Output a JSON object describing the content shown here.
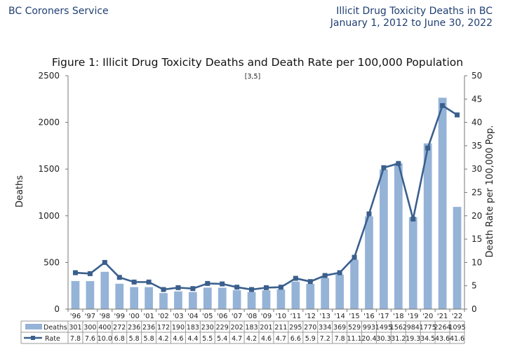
{
  "header": {
    "org": "BC Coroners Service",
    "report_title_line1": "Illicit Drug Toxicity Deaths in BC",
    "report_title_line2": "January 1, 2012 to June 30, 2022"
  },
  "colors": {
    "bars": "#95b3d7",
    "line": "#3a5f8d",
    "header_text": "#1f3f73"
  },
  "chart_data": {
    "type": "bar",
    "title": "Figure 1: Illicit Drug Toxicity Deaths and Death Rate per 100,000 Population",
    "annotation": "[3,5]",
    "ylabel": "Deaths",
    "y2label": "Death Rate per 100,000 Pop.",
    "ylim": [
      0,
      2500
    ],
    "yticks": [
      0,
      500,
      1000,
      1500,
      2000,
      2500
    ],
    "y2lim": [
      0,
      50
    ],
    "y2ticks": [
      0,
      5,
      10,
      15,
      20,
      25,
      30,
      35,
      40,
      45,
      50
    ],
    "categories": [
      "'96",
      "'97",
      "'98",
      "'99",
      "'00",
      "'01",
      "'02",
      "'03",
      "'04",
      "'05",
      "'06",
      "'07",
      "'08",
      "'09",
      "'10",
      "'11",
      "'12",
      "'13",
      "'14",
      "'15",
      "'16",
      "'17",
      "'18",
      "'19",
      "'20",
      "'21",
      "'22"
    ],
    "series": [
      {
        "name": "Deaths",
        "type": "bar",
        "axis": "left",
        "values": [
          301,
          300,
          400,
          272,
          236,
          236,
          172,
          190,
          183,
          230,
          229,
          202,
          183,
          201,
          211,
          295,
          270,
          334,
          369,
          529,
          993,
          1495,
          1562,
          984,
          1775,
          2264,
          1095
        ]
      },
      {
        "name": "Rate",
        "type": "line",
        "axis": "right",
        "values": [
          7.8,
          7.6,
          10.0,
          6.8,
          5.8,
          5.8,
          4.2,
          4.6,
          4.4,
          5.5,
          5.4,
          4.7,
          4.2,
          4.6,
          4.7,
          6.6,
          5.9,
          7.2,
          7.8,
          11.1,
          20.4,
          30.3,
          31.2,
          19.3,
          34.5,
          43.6,
          41.6
        ]
      }
    ],
    "rate_labels": [
      "7.8",
      "7.6",
      "10.0",
      "6.8",
      "5.8",
      "5.8",
      "4.2",
      "4.6",
      "4.4",
      "5.5",
      "5.4",
      "4.7",
      "4.2",
      "4.6",
      "4.7",
      "6.6",
      "5.9",
      "7.2",
      "7.8",
      "11.1",
      "20.4",
      "30.3",
      "31.2",
      "19.3",
      "34.5",
      "43.6",
      "41.6"
    ],
    "legend": "data-table-below",
    "grid": false
  }
}
